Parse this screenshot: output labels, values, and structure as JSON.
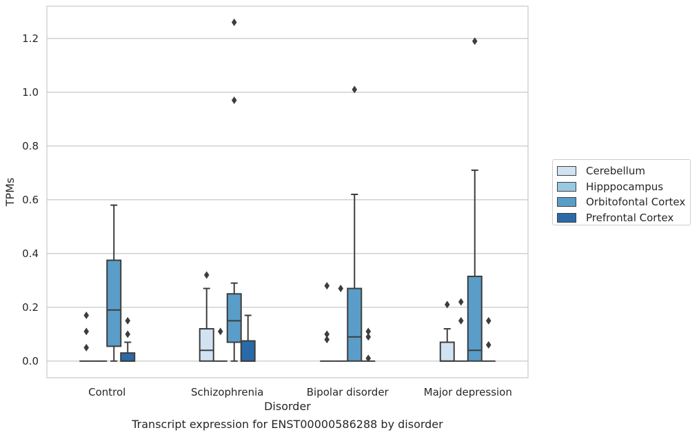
{
  "caption": "Transcript expression for ENST00000586288 by disorder",
  "chart_data": {
    "type": "box",
    "title": "",
    "xlabel": "Disorder",
    "ylabel": "TPMs",
    "ylim": [
      -0.062,
      1.32
    ],
    "yticks": [
      0.0,
      0.2,
      0.4,
      0.6,
      0.8,
      1.0,
      1.2
    ],
    "ytick_labels": [
      "0.0",
      "0.2",
      "0.4",
      "0.6",
      "0.8",
      "1.0",
      "1.2"
    ],
    "grid": "horizontal",
    "legend_position": "right",
    "categories": [
      "Control",
      "Schizophrenia",
      "Bipolar disorder",
      "Major depression"
    ],
    "series": [
      {
        "name": "Cerebellum",
        "color": "#d1e2f2",
        "boxes": [
          {
            "q1": 0,
            "median": 0,
            "q3": 0,
            "whislo": 0,
            "whishi": 0,
            "fliers": [
              0.05,
              0.11,
              0.17
            ]
          },
          {
            "q1": 0,
            "median": 0.04,
            "q3": 0.12,
            "whislo": 0,
            "whishi": 0.27,
            "fliers": [
              0.32
            ]
          },
          {
            "q1": 0,
            "median": 0,
            "q3": 0,
            "whislo": 0,
            "whishi": 0,
            "fliers": [
              0.08,
              0.1,
              0.28
            ]
          },
          {
            "q1": 0,
            "median": 0,
            "q3": 0.07,
            "whislo": 0,
            "whishi": 0.12,
            "fliers": [
              0.21
            ]
          }
        ]
      },
      {
        "name": "Hipppocampus",
        "color": "#9ac8e0",
        "boxes": [
          {
            "q1": 0,
            "median": 0,
            "q3": 0,
            "whislo": 0,
            "whishi": 0,
            "fliers": []
          },
          {
            "q1": 0,
            "median": 0,
            "q3": 0,
            "whislo": 0,
            "whishi": 0,
            "fliers": [
              0.11
            ]
          },
          {
            "q1": 0,
            "median": 0,
            "q3": 0,
            "whislo": 0,
            "whishi": 0,
            "fliers": [
              0.27
            ]
          },
          {
            "q1": 0,
            "median": 0,
            "q3": 0,
            "whislo": 0,
            "whishi": 0,
            "fliers": [
              0.15,
              0.22
            ]
          }
        ]
      },
      {
        "name": "Orbitofontal Cortex",
        "color": "#5a9dc8",
        "boxes": [
          {
            "q1": 0.055,
            "median": 0.19,
            "q3": 0.375,
            "whislo": 0,
            "whishi": 0.58,
            "fliers": []
          },
          {
            "q1": 0.07,
            "median": 0.15,
            "q3": 0.25,
            "whislo": 0,
            "whishi": 0.29,
            "fliers": [
              0.97,
              1.26
            ]
          },
          {
            "q1": 0,
            "median": 0.09,
            "q3": 0.27,
            "whislo": 0,
            "whishi": 0.62,
            "fliers": [
              1.01
            ]
          },
          {
            "q1": 0,
            "median": 0.04,
            "q3": 0.315,
            "whislo": 0,
            "whishi": 0.71,
            "fliers": [
              1.19
            ]
          }
        ]
      },
      {
        "name": "Prefrontal Cortex",
        "color": "#2a6aa8",
        "boxes": [
          {
            "q1": 0,
            "median": 0,
            "q3": 0.03,
            "whislo": 0,
            "whishi": 0.07,
            "fliers": [
              0.1,
              0.15
            ]
          },
          {
            "q1": 0,
            "median": 0,
            "q3": 0.075,
            "whislo": 0,
            "whishi": 0.17,
            "fliers": []
          },
          {
            "q1": 0,
            "median": 0,
            "q3": 0,
            "whislo": 0,
            "whishi": 0,
            "fliers": [
              0.01,
              0.09,
              0.11
            ]
          },
          {
            "q1": 0,
            "median": 0,
            "q3": 0,
            "whislo": 0,
            "whishi": 0,
            "fliers": [
              0.06,
              0.15
            ]
          }
        ]
      }
    ]
  }
}
